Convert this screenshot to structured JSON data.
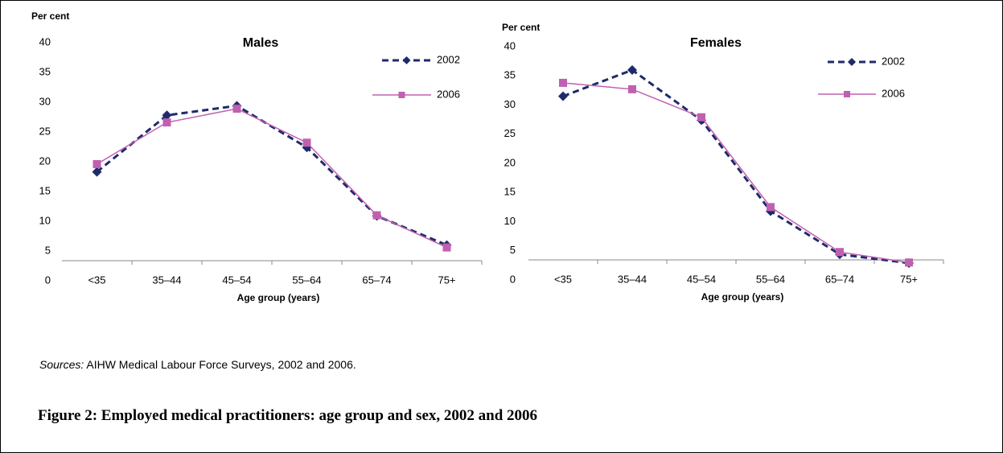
{
  "chart_data": [
    {
      "type": "line",
      "title": "Males",
      "y_label": "Per cent",
      "x_label": "Age group (years)",
      "categories": [
        "<35",
        "35–44",
        "45–54",
        "55–64",
        "65–74",
        "75+"
      ],
      "series": [
        {
          "name": "2002",
          "color": "#1f2a6b",
          "style": "dashed",
          "marker": "diamond",
          "values": [
            18.3,
            27.8,
            29.4,
            22.4,
            10.9,
            6.0
          ]
        },
        {
          "name": "2006",
          "color": "#c060b0",
          "style": "solid",
          "marker": "square",
          "values": [
            19.6,
            26.6,
            28.9,
            23.2,
            11.0,
            5.6
          ]
        }
      ],
      "ylim": [
        0,
        40
      ],
      "yticks": [
        0,
        5,
        10,
        15,
        20,
        25,
        30,
        35,
        40
      ],
      "grid": false
    },
    {
      "type": "line",
      "title": "Females",
      "y_label": "Per cent",
      "x_label": "Age group (years)",
      "categories": [
        "<35",
        "35–44",
        "45–54",
        "55–64",
        "65–74",
        "75+"
      ],
      "series": [
        {
          "name": "2002",
          "color": "#1f2a6b",
          "style": "dashed",
          "marker": "diamond",
          "values": [
            31.5,
            36.0,
            27.4,
            11.8,
            4.4,
            2.9
          ]
        },
        {
          "name": "2006",
          "color": "#c060b0",
          "style": "solid",
          "marker": "square",
          "values": [
            33.8,
            32.7,
            27.9,
            12.5,
            4.8,
            3.0
          ]
        }
      ],
      "ylim": [
        0,
        40
      ],
      "yticks": [
        0,
        5,
        10,
        15,
        20,
        25,
        30,
        35,
        40
      ],
      "grid": false
    }
  ],
  "sources": {
    "label": "Sources:",
    "text": " AIHW Medical Labour Force Surveys, 2002 and 2006."
  },
  "caption": "Figure 2: Employed medical practitioners: age group and sex, 2002 and 2006"
}
